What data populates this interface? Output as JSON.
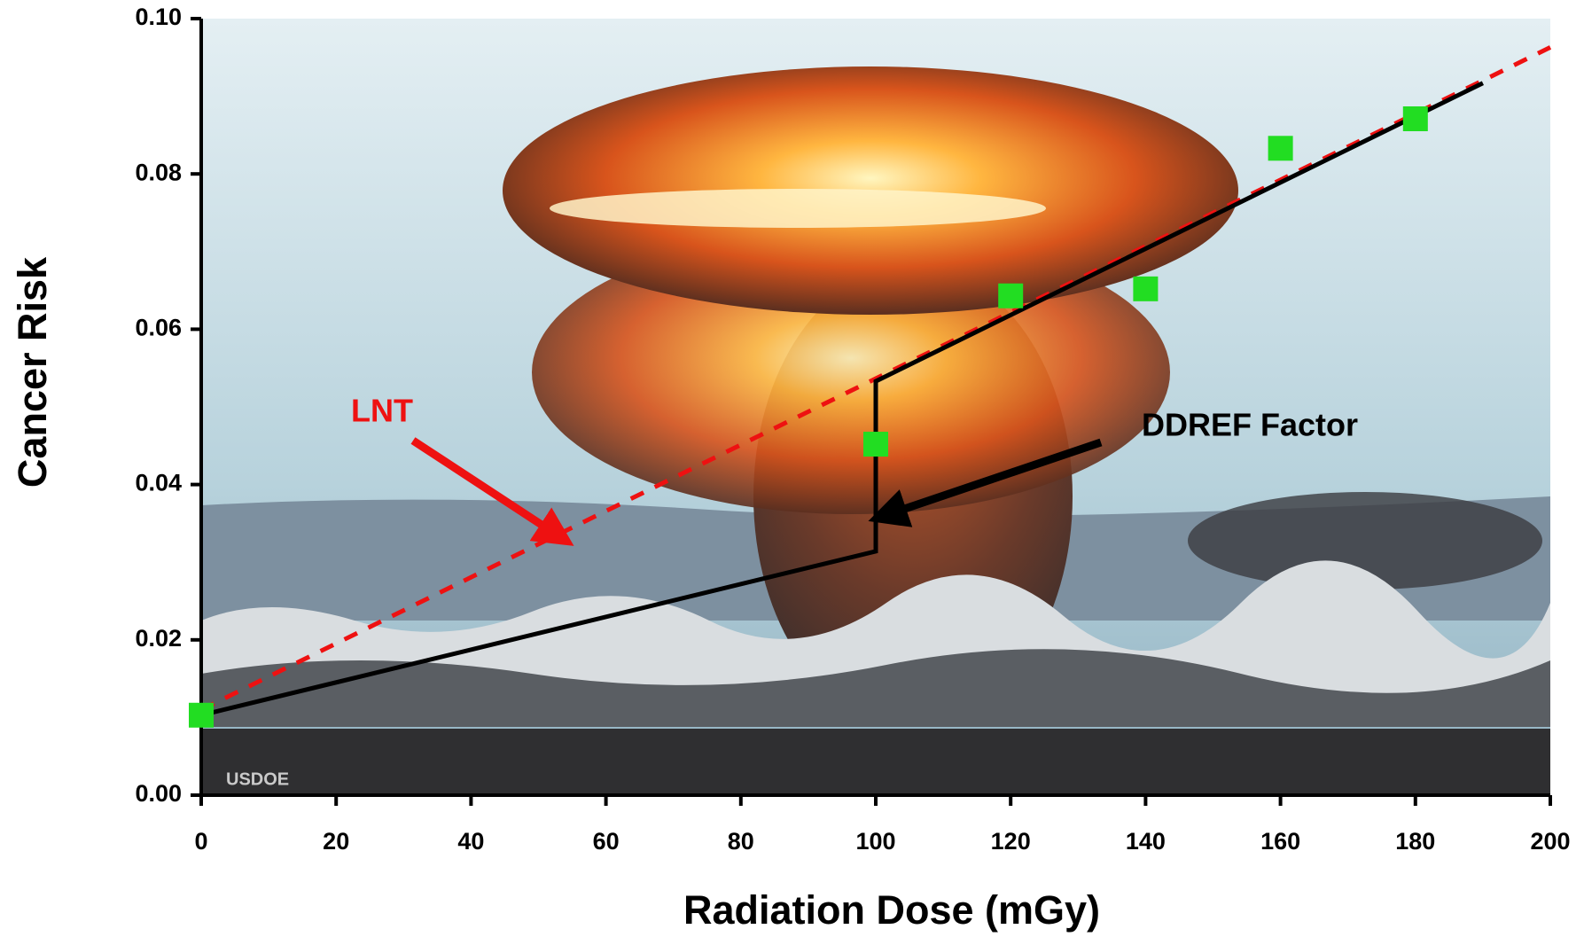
{
  "chart_data": {
    "type": "scatter",
    "x_label": "Radiation Dose (mGy)",
    "y_label": "Cancer Risk",
    "x": [
      0,
      100,
      120,
      140,
      160,
      180
    ],
    "values": [
      0.0103,
      0.0452,
      0.0643,
      0.0652,
      0.0833,
      0.0871
    ],
    "color": "#22dd22",
    "lines": [
      {
        "color": "#ee1111",
        "dashed": true,
        "x": [
          0,
          200
        ],
        "values": [
          0.011,
          0.0963
        ]
      },
      {
        "color": "#000000",
        "dashed": false,
        "x": [
          0,
          100,
          100,
          190
        ],
        "values": [
          0.0103,
          0.0314,
          0.0533,
          0.0917
        ]
      }
    ],
    "annotations": [
      {
        "text": "LNT",
        "color": "#ee1111"
      },
      {
        "text": "DDREF Factor",
        "color": "#000000"
      }
    ],
    "watermark": "USDOE",
    "xlim": [
      0,
      200
    ],
    "xticks": [
      0,
      20,
      40,
      60,
      80,
      100,
      120,
      140,
      160,
      180,
      200
    ],
    "ylim": [
      0,
      0.1
    ],
    "yticks": [
      {
        "value": 0,
        "label": "0.00"
      },
      0.02,
      0.04,
      0.06,
      0.08,
      {
        "value": 0.1,
        "label": "0.10"
      }
    ]
  }
}
